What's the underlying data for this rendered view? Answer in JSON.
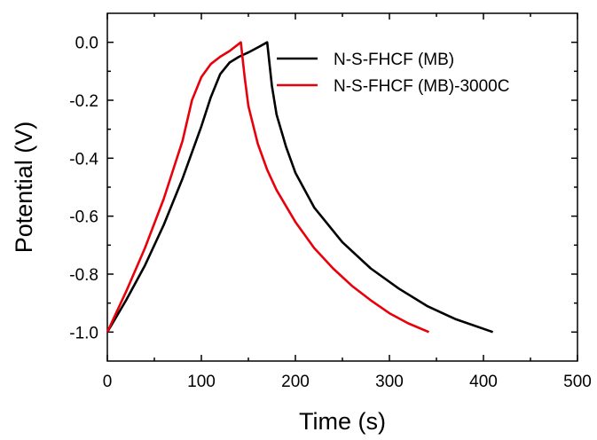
{
  "chart_data": {
    "type": "line",
    "title": "",
    "xlabel": "Time (s)",
    "ylabel": "Potential (V)",
    "xlim": [
      0,
      500
    ],
    "ylim": [
      -1.1,
      0.1
    ],
    "x_ticks": [
      0,
      100,
      200,
      300,
      400,
      500
    ],
    "x_tick_labels": [
      "0",
      "100",
      "200",
      "300",
      "400",
      "500"
    ],
    "y_ticks": [
      0.0,
      -0.2,
      -0.4,
      -0.6,
      -0.8,
      -1.0
    ],
    "y_tick_labels": [
      "0.0",
      "-0.2",
      "-0.4",
      "-0.6",
      "-0.8",
      "-1.0"
    ],
    "grid": false,
    "legend_position": "top-right",
    "series": [
      {
        "name": "N-S-FHCF (MB)",
        "color": "#000000",
        "points": [
          [
            0,
            -1.0
          ],
          [
            20,
            -0.89
          ],
          [
            40,
            -0.77
          ],
          [
            60,
            -0.63
          ],
          [
            80,
            -0.47
          ],
          [
            100,
            -0.29
          ],
          [
            110,
            -0.19
          ],
          [
            120,
            -0.11
          ],
          [
            130,
            -0.07
          ],
          [
            140,
            -0.05
          ],
          [
            150,
            -0.035
          ],
          [
            160,
            -0.018
          ],
          [
            170,
            0.0
          ],
          [
            175,
            -0.15
          ],
          [
            180,
            -0.25
          ],
          [
            190,
            -0.36
          ],
          [
            200,
            -0.45
          ],
          [
            220,
            -0.57
          ],
          [
            250,
            -0.69
          ],
          [
            280,
            -0.78
          ],
          [
            310,
            -0.85
          ],
          [
            340,
            -0.91
          ],
          [
            370,
            -0.955
          ],
          [
            410,
            -1.0
          ]
        ]
      },
      {
        "name": "N-S-FHCF (MB)-3000C",
        "color": "#e8000b",
        "points": [
          [
            0,
            -1.0
          ],
          [
            20,
            -0.86
          ],
          [
            40,
            -0.71
          ],
          [
            60,
            -0.54
          ],
          [
            80,
            -0.34
          ],
          [
            90,
            -0.2
          ],
          [
            100,
            -0.12
          ],
          [
            110,
            -0.075
          ],
          [
            120,
            -0.05
          ],
          [
            130,
            -0.03
          ],
          [
            142,
            0.0
          ],
          [
            146,
            -0.12
          ],
          [
            150,
            -0.22
          ],
          [
            160,
            -0.35
          ],
          [
            170,
            -0.44
          ],
          [
            180,
            -0.51
          ],
          [
            200,
            -0.62
          ],
          [
            220,
            -0.71
          ],
          [
            240,
            -0.78
          ],
          [
            260,
            -0.84
          ],
          [
            280,
            -0.89
          ],
          [
            300,
            -0.935
          ],
          [
            320,
            -0.97
          ],
          [
            342,
            -1.0
          ]
        ]
      }
    ]
  }
}
